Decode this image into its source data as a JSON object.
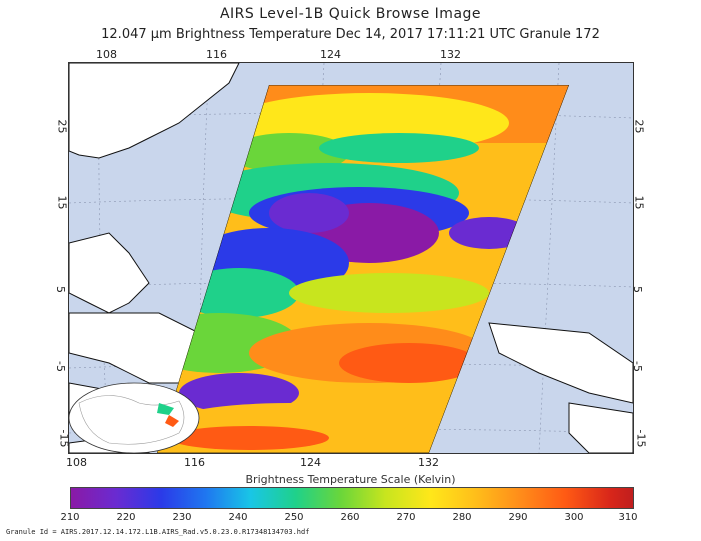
{
  "header": {
    "title": "AIRS Level-1B Quick Browse Image",
    "subtitle": "12.047 μm Brightness Temperature    Dec 14, 2017 17:11:21 UTC   Granule 172"
  },
  "map": {
    "lon_ticks_top": [
      "108",
      "116",
      "124",
      "132"
    ],
    "lon_ticks_bottom": [
      "108",
      "116",
      "124",
      "132"
    ],
    "lat_ticks_left": [
      "25",
      "15",
      "5",
      "-5",
      "-15"
    ],
    "lat_ticks_right": [
      "25",
      "15",
      "5",
      "-5",
      "-15"
    ],
    "colors": {
      "ocean": "#c9d6ec",
      "land": "#ffffff",
      "coast": "#111111"
    }
  },
  "colorbar": {
    "title": "Brightness Temperature Scale (Kelvin)",
    "ticks": [
      "210",
      "220",
      "230",
      "240",
      "250",
      "260",
      "270",
      "280",
      "290",
      "300",
      "310"
    ],
    "colors": [
      "#8a1aa6",
      "#2b3ae8",
      "#19c6e6",
      "#1fd18a",
      "#6ad63a",
      "#ffe71a",
      "#ff8c1a",
      "#d8261a"
    ]
  },
  "footer": {
    "granule_id": "Granule Id = AIRS.2017.12.14.172.L1B.AIRS_Rad.v5.0.23.0.R17348134703.hdf"
  }
}
